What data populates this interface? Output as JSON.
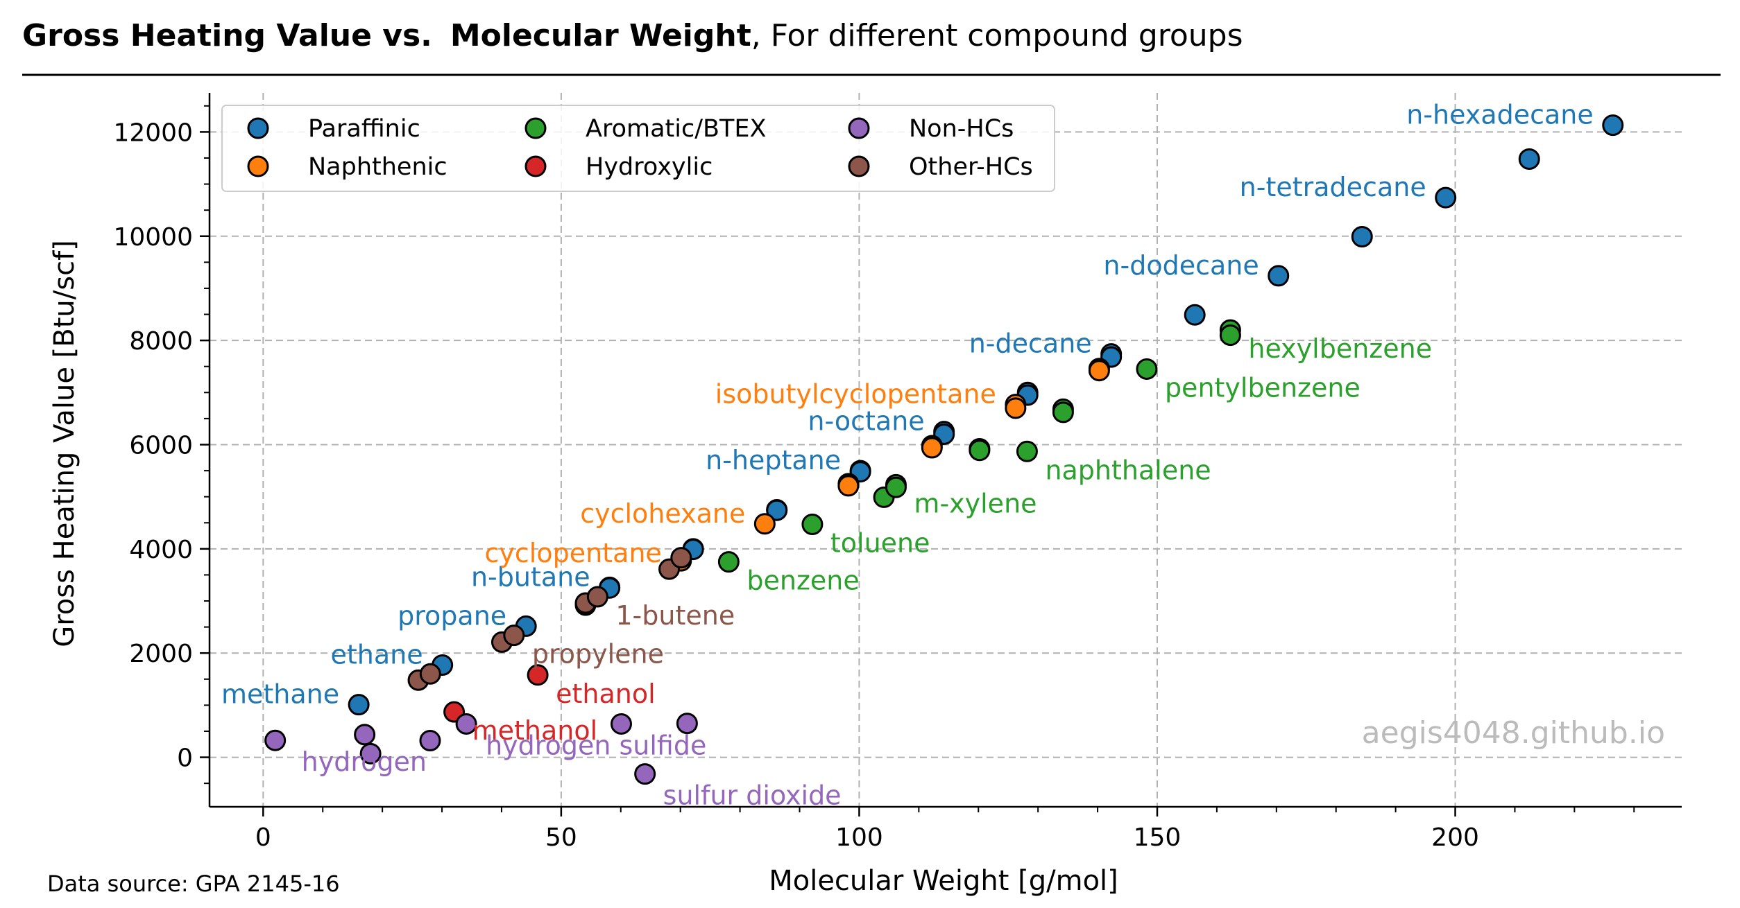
{
  "header": {
    "title_bold_1": "Gross Heating Value vs.",
    "title_bold_2": "Molecular Weight",
    "title_rest": ", For different compound groups"
  },
  "watermark": "aegis4048.github.io",
  "footer": {
    "source": "Data source: GPA 2145-16"
  },
  "chart_data": {
    "type": "scatter",
    "xlabel": "Molecular Weight [g/mol]",
    "ylabel": "Gross Heating Value [Btu/scf]",
    "xlim": [
      -9,
      238
    ],
    "ylim": [
      -950,
      12750
    ],
    "xticks": [
      0,
      50,
      100,
      150,
      200
    ],
    "yticks": [
      0,
      2000,
      4000,
      6000,
      8000,
      10000,
      12000
    ],
    "grid": true,
    "legend_placement": "upper-left",
    "series": [
      {
        "name": "Paraffinic",
        "color": "#1f77b4",
        "points": [
          {
            "x": 16.04,
            "y": 1010,
            "label": "methane"
          },
          {
            "x": 30.07,
            "y": 1770,
            "label": "ethane"
          },
          {
            "x": 44.1,
            "y": 2516,
            "label": "propane"
          },
          {
            "x": 58.12,
            "y": 3262,
            "label": "n-butane"
          },
          {
            "x": 72.15,
            "y": 4000
          },
          {
            "x": 86.18,
            "y": 4750
          },
          {
            "x": 100.2,
            "y": 5500,
            "label": "n-heptane"
          },
          {
            "x": 114.23,
            "y": 6250,
            "label": "n-octane"
          },
          {
            "x": 128.26,
            "y": 7000
          },
          {
            "x": 142.28,
            "y": 7740,
            "label": "n-decane"
          },
          {
            "x": 156.31,
            "y": 8490
          },
          {
            "x": 170.34,
            "y": 9240,
            "label": "n-dodecane"
          },
          {
            "x": 184.37,
            "y": 9990
          },
          {
            "x": 198.39,
            "y": 10740,
            "label": "n-tetradecane"
          },
          {
            "x": 212.42,
            "y": 11480
          },
          {
            "x": 226.45,
            "y": 12130,
            "label": "n-hexadecane"
          },
          {
            "x": 58.12,
            "y": 3250
          },
          {
            "x": 72.15,
            "y": 3990
          },
          {
            "x": 86.18,
            "y": 4740
          },
          {
            "x": 100.2,
            "y": 5480
          },
          {
            "x": 114.23,
            "y": 6200
          },
          {
            "x": 128.26,
            "y": 6950
          },
          {
            "x": 142.28,
            "y": 7680
          }
        ]
      },
      {
        "name": "Naphthenic",
        "color": "#ff7f0e",
        "points": [
          {
            "x": 70.13,
            "y": 3770,
            "label": "cyclopentane"
          },
          {
            "x": 84.16,
            "y": 4480,
            "label": "cyclohexane"
          },
          {
            "x": 98.19,
            "y": 5250
          },
          {
            "x": 98.19,
            "y": 5210
          },
          {
            "x": 112.21,
            "y": 5980
          },
          {
            "x": 112.21,
            "y": 5940
          },
          {
            "x": 126.24,
            "y": 6770,
            "label": "isobutylcyclopentane"
          },
          {
            "x": 126.24,
            "y": 6700
          },
          {
            "x": 140.27,
            "y": 7460
          },
          {
            "x": 140.27,
            "y": 7420
          }
        ]
      },
      {
        "name": "Aromatic/BTEX",
        "color": "#2ca02c",
        "points": [
          {
            "x": 78.11,
            "y": 3750,
            "label": "benzene"
          },
          {
            "x": 92.14,
            "y": 4470,
            "label": "toluene"
          },
          {
            "x": 106.17,
            "y": 5230,
            "label": "m-xylene"
          },
          {
            "x": 104.15,
            "y": 4990
          },
          {
            "x": 106.17,
            "y": 5180
          },
          {
            "x": 120.19,
            "y": 5920
          },
          {
            "x": 120.19,
            "y": 5890
          },
          {
            "x": 128.17,
            "y": 5870,
            "label": "naphthalene"
          },
          {
            "x": 134.22,
            "y": 6680
          },
          {
            "x": 134.22,
            "y": 6620
          },
          {
            "x": 148.25,
            "y": 7450,
            "label": "pentylbenzene"
          },
          {
            "x": 162.27,
            "y": 8200,
            "label": "hexylbenzene"
          },
          {
            "x": 162.27,
            "y": 8100
          }
        ]
      },
      {
        "name": "Hydroxylic",
        "color": "#d62728",
        "points": [
          {
            "x": 32.04,
            "y": 870,
            "label": "methanol"
          },
          {
            "x": 46.07,
            "y": 1580,
            "label": "ethanol"
          }
        ]
      },
      {
        "name": "Non-HCs",
        "color": "#9467bd",
        "points": [
          {
            "x": 2.02,
            "y": 324,
            "label": "hydrogen"
          },
          {
            "x": 17.03,
            "y": 435
          },
          {
            "x": 18.02,
            "y": 70
          },
          {
            "x": 28.01,
            "y": 320
          },
          {
            "x": 34.08,
            "y": 640,
            "label": "hydrogen sulfide"
          },
          {
            "x": 60.08,
            "y": 640
          },
          {
            "x": 71.13,
            "y": 650
          },
          {
            "x": 64.06,
            "y": -320,
            "label": "sulfur dioxide"
          }
        ]
      },
      {
        "name": "Other-HCs",
        "color": "#8c564b",
        "points": [
          {
            "x": 26.04,
            "y": 1480
          },
          {
            "x": 28.05,
            "y": 1600
          },
          {
            "x": 40.06,
            "y": 2210
          },
          {
            "x": 42.08,
            "y": 2340,
            "label": "propylene"
          },
          {
            "x": 54.09,
            "y": 2920
          },
          {
            "x": 54.09,
            "y": 2960
          },
          {
            "x": 56.11,
            "y": 3080,
            "label": "1-butene"
          },
          {
            "x": 68.12,
            "y": 3610
          },
          {
            "x": 70.13,
            "y": 3830
          }
        ]
      }
    ]
  }
}
